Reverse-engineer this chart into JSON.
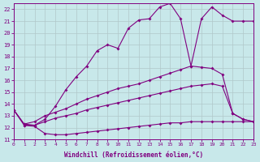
{
  "xlabel": "Windchill (Refroidissement éolien,°C)",
  "xlim": [
    0,
    23
  ],
  "ylim": [
    11,
    22.5
  ],
  "yticks": [
    11,
    12,
    13,
    14,
    15,
    16,
    17,
    18,
    19,
    20,
    21,
    22
  ],
  "xticks": [
    0,
    1,
    2,
    3,
    4,
    5,
    6,
    7,
    8,
    9,
    10,
    11,
    12,
    13,
    14,
    15,
    16,
    17,
    18,
    19,
    20,
    21,
    22,
    23
  ],
  "background_color": "#c8e8ea",
  "line_color": "#800080",
  "grid_color": "#b0c8ca",
  "line1": {
    "x": [
      0,
      1,
      2,
      3,
      4,
      5,
      6,
      7,
      8,
      9,
      10,
      11,
      12,
      13,
      14,
      15,
      16,
      17,
      18,
      19,
      20,
      21,
      22,
      23
    ],
    "y": [
      13.5,
      12.2,
      12.1,
      11.5,
      11.4,
      11.4,
      11.5,
      11.6,
      11.7,
      11.8,
      11.9,
      12.0,
      12.1,
      12.2,
      12.3,
      12.4,
      12.4,
      12.5,
      12.5,
      12.5,
      12.5,
      12.5,
      12.5,
      12.5
    ]
  },
  "line2": {
    "x": [
      1,
      2,
      3,
      4,
      5,
      6,
      7,
      8,
      9,
      10,
      11,
      12,
      13,
      14,
      15,
      16,
      17,
      18,
      19,
      20,
      21,
      22,
      23
    ],
    "y": [
      12.2,
      12.2,
      12.5,
      12.8,
      13.0,
      13.2,
      13.5,
      13.7,
      13.9,
      14.1,
      14.3,
      14.5,
      14.7,
      14.9,
      15.1,
      15.3,
      15.5,
      15.6,
      15.7,
      15.5,
      13.2,
      12.7,
      12.5
    ]
  },
  "line3": {
    "x": [
      0,
      1,
      2,
      3,
      4,
      5,
      6,
      7,
      8,
      9,
      10,
      11,
      12,
      13,
      14,
      15,
      16,
      17,
      18,
      19,
      20,
      21,
      22,
      23
    ],
    "y": [
      13.5,
      12.3,
      12.5,
      13.0,
      13.3,
      13.6,
      14.0,
      14.4,
      14.7,
      15.0,
      15.3,
      15.5,
      15.7,
      16.0,
      16.3,
      16.6,
      16.9,
      17.2,
      17.1,
      17.0,
      16.5,
      13.2,
      12.7,
      12.5
    ]
  },
  "line4": {
    "x": [
      0,
      1,
      2,
      3,
      4,
      5,
      6,
      7,
      8,
      9,
      10,
      11,
      12,
      13,
      14,
      15,
      16,
      17,
      18,
      19,
      20,
      21,
      22,
      23
    ],
    "y": [
      13.5,
      12.3,
      12.2,
      12.7,
      13.8,
      15.2,
      16.3,
      17.2,
      18.5,
      19.0,
      18.7,
      20.4,
      21.1,
      21.2,
      22.2,
      22.5,
      21.2,
      17.2,
      21.2,
      22.2,
      21.5,
      21.0,
      21.0,
      21.0
    ]
  }
}
